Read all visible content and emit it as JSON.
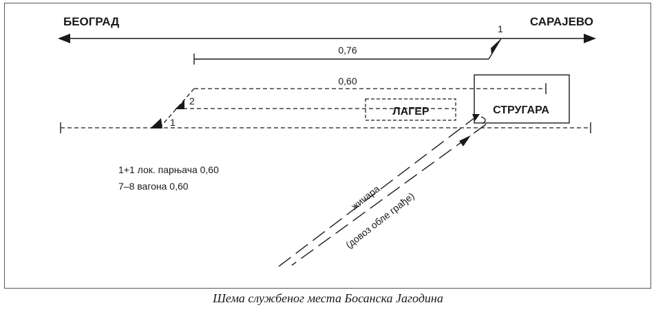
{
  "directions": {
    "left": "БЕОГРАД",
    "right": "САРАЈЕВО"
  },
  "switches": {
    "main_switch": "1",
    "lower_switch_1": "1",
    "lower_switch_2": "2"
  },
  "track_lengths": {
    "upper_siding": "0,76",
    "dashed_siding": "0,60"
  },
  "buildings": {
    "sawmill": "СТРУГАРА",
    "storage": "ЛАГЕР"
  },
  "cableway": {
    "label": "жичара",
    "sublabel": "(довоз обле грађе)"
  },
  "capacity_notes": [
    "1+1 лок. парњача 0,60",
    "7–8 вагона 0,60"
  ],
  "caption": "Шема службеног места Босанска Јагодина"
}
